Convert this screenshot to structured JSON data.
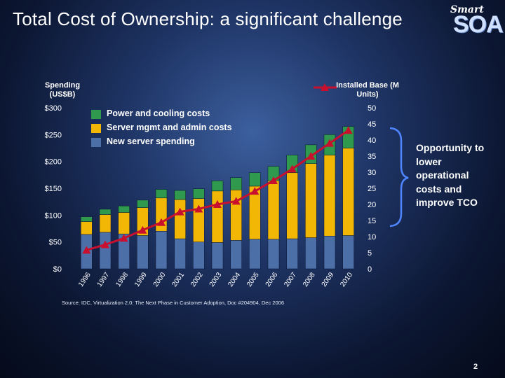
{
  "slide": {
    "title": "Total Cost of Ownership: a significant challenge",
    "logo_top": "Smart",
    "logo_bottom": "SOA",
    "page_number": "2",
    "source": "Source: IDC, Virtualization 2.0: The Next Phase in Customer Adoption,  Doc #204904, Dec 2006",
    "callout": "Opportunity to lower operational costs and improve TCO"
  },
  "colors": {
    "power": "#2f9a4d",
    "server_mgmt": "#f2b705",
    "new_server": "#4d6fa8",
    "installed_base": "#c8102e"
  },
  "chart_data": {
    "type": "bar",
    "stacked": true,
    "left_axis_title": "Spending (US$B)",
    "right_axis_title": "Installed Base (M Units)",
    "categories": [
      "1996",
      "1997",
      "1998",
      "1999",
      "2000",
      "2001",
      "2002",
      "2003",
      "2004",
      "2005",
      "2006",
      "2007",
      "2008",
      "2009",
      "2010"
    ],
    "ylim_left": [
      0,
      300
    ],
    "yticks_left": [
      "$0",
      "$50",
      "$100",
      "$150",
      "$200",
      "$250",
      "$300"
    ],
    "ylim_right": [
      0,
      50
    ],
    "yticks_right": [
      "0",
      "5",
      "10",
      "15",
      "20",
      "25",
      "30",
      "35",
      "40",
      "45",
      "50"
    ],
    "series": [
      {
        "name": "New server spending",
        "values": [
          64,
          68,
          65,
          62,
          70,
          56,
          50,
          49,
          53,
          55,
          55,
          56,
          58,
          61,
          62
        ]
      },
      {
        "name": "Server mgmt and admin costs",
        "values": [
          24,
          33,
          40,
          52,
          62,
          73,
          81,
          96,
          94,
          99,
          109,
          123,
          138,
          151,
          163
        ]
      },
      {
        "name": "Power and cooling costs",
        "values": [
          9,
          10,
          12,
          14,
          16,
          17,
          18,
          19,
          23,
          25,
          27,
          33,
          35,
          38,
          40
        ]
      },
      {
        "name": "Installed Base (M Units)",
        "axis": "right",
        "type": "line",
        "values": [
          5.8,
          7.5,
          9.5,
          12,
          14.4,
          17.7,
          18.6,
          20,
          21,
          24.1,
          27.4,
          31,
          35,
          39,
          43
        ]
      }
    ],
    "legend": [
      "Power and cooling costs",
      "Server mgmt and admin costs",
      "New server spending"
    ],
    "grid": false
  }
}
